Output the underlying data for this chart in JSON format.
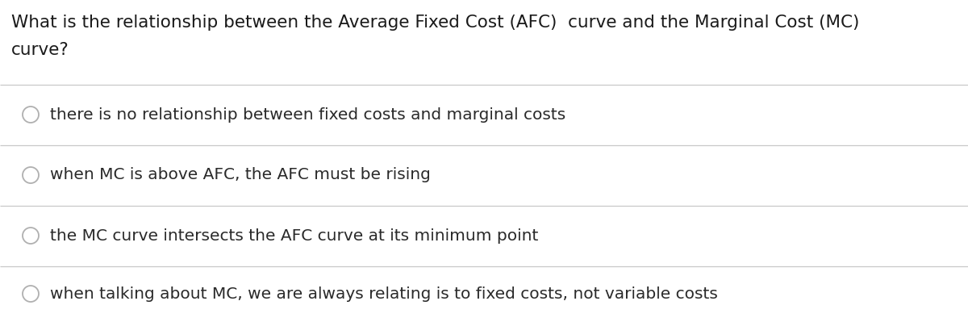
{
  "question_line1": "What is the relationship between the Average Fixed Cost (AFC)  curve and the Marginal Cost (MC)",
  "question_line2": "curve?",
  "options": [
    "there is no relationship between fixed costs and marginal costs",
    "when MC is above AFC, the AFC must be rising",
    "the MC curve intersects the AFC curve at its minimum point",
    "when talking about MC, we are always relating is to fixed costs, not variable costs"
  ],
  "background_color": "#ffffff",
  "text_color": "#1a1a1a",
  "option_text_color": "#2a2a2a",
  "divider_color": "#c8c8c8",
  "circle_edge_color": "#b0b0b0",
  "circle_fill_color": "#ffffff",
  "question_fontsize": 15.5,
  "option_fontsize": 14.5,
  "fig_width": 12.0,
  "fig_height": 3.99,
  "dpi": 100
}
